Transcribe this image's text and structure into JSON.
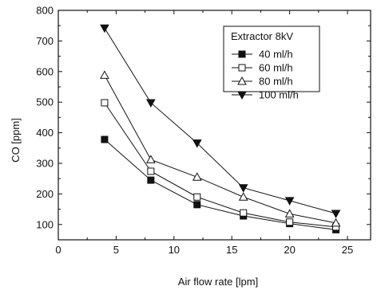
{
  "chart_data": {
    "type": "line",
    "xlabel": "Air flow rate [lpm]",
    "ylabel": "CO [ppm]",
    "xlim": [
      0,
      27
    ],
    "ylim": [
      50,
      800
    ],
    "x_ticks": [
      0,
      5,
      10,
      15,
      20,
      25
    ],
    "y_ticks": [
      100,
      200,
      300,
      400,
      500,
      600,
      700,
      800
    ],
    "legend_title": "Extractor 8kV",
    "legend_position": "top-right",
    "grid": false,
    "x": [
      4,
      8,
      12,
      16,
      20,
      24
    ],
    "series": [
      {
        "name": "40 ml/h",
        "marker": "filled-square",
        "values": [
          378,
          245,
          165,
          128,
          103,
          83
        ]
      },
      {
        "name": "60 ml/h",
        "marker": "open-square",
        "values": [
          498,
          274,
          190,
          138,
          108,
          92
        ]
      },
      {
        "name": "80 ml/h",
        "marker": "open-triangle-up",
        "values": [
          588,
          312,
          255,
          190,
          135,
          105
        ]
      },
      {
        "name": "100 ml/h",
        "marker": "filled-triangle-down",
        "values": [
          742,
          498,
          366,
          220,
          178,
          136
        ]
      }
    ]
  }
}
